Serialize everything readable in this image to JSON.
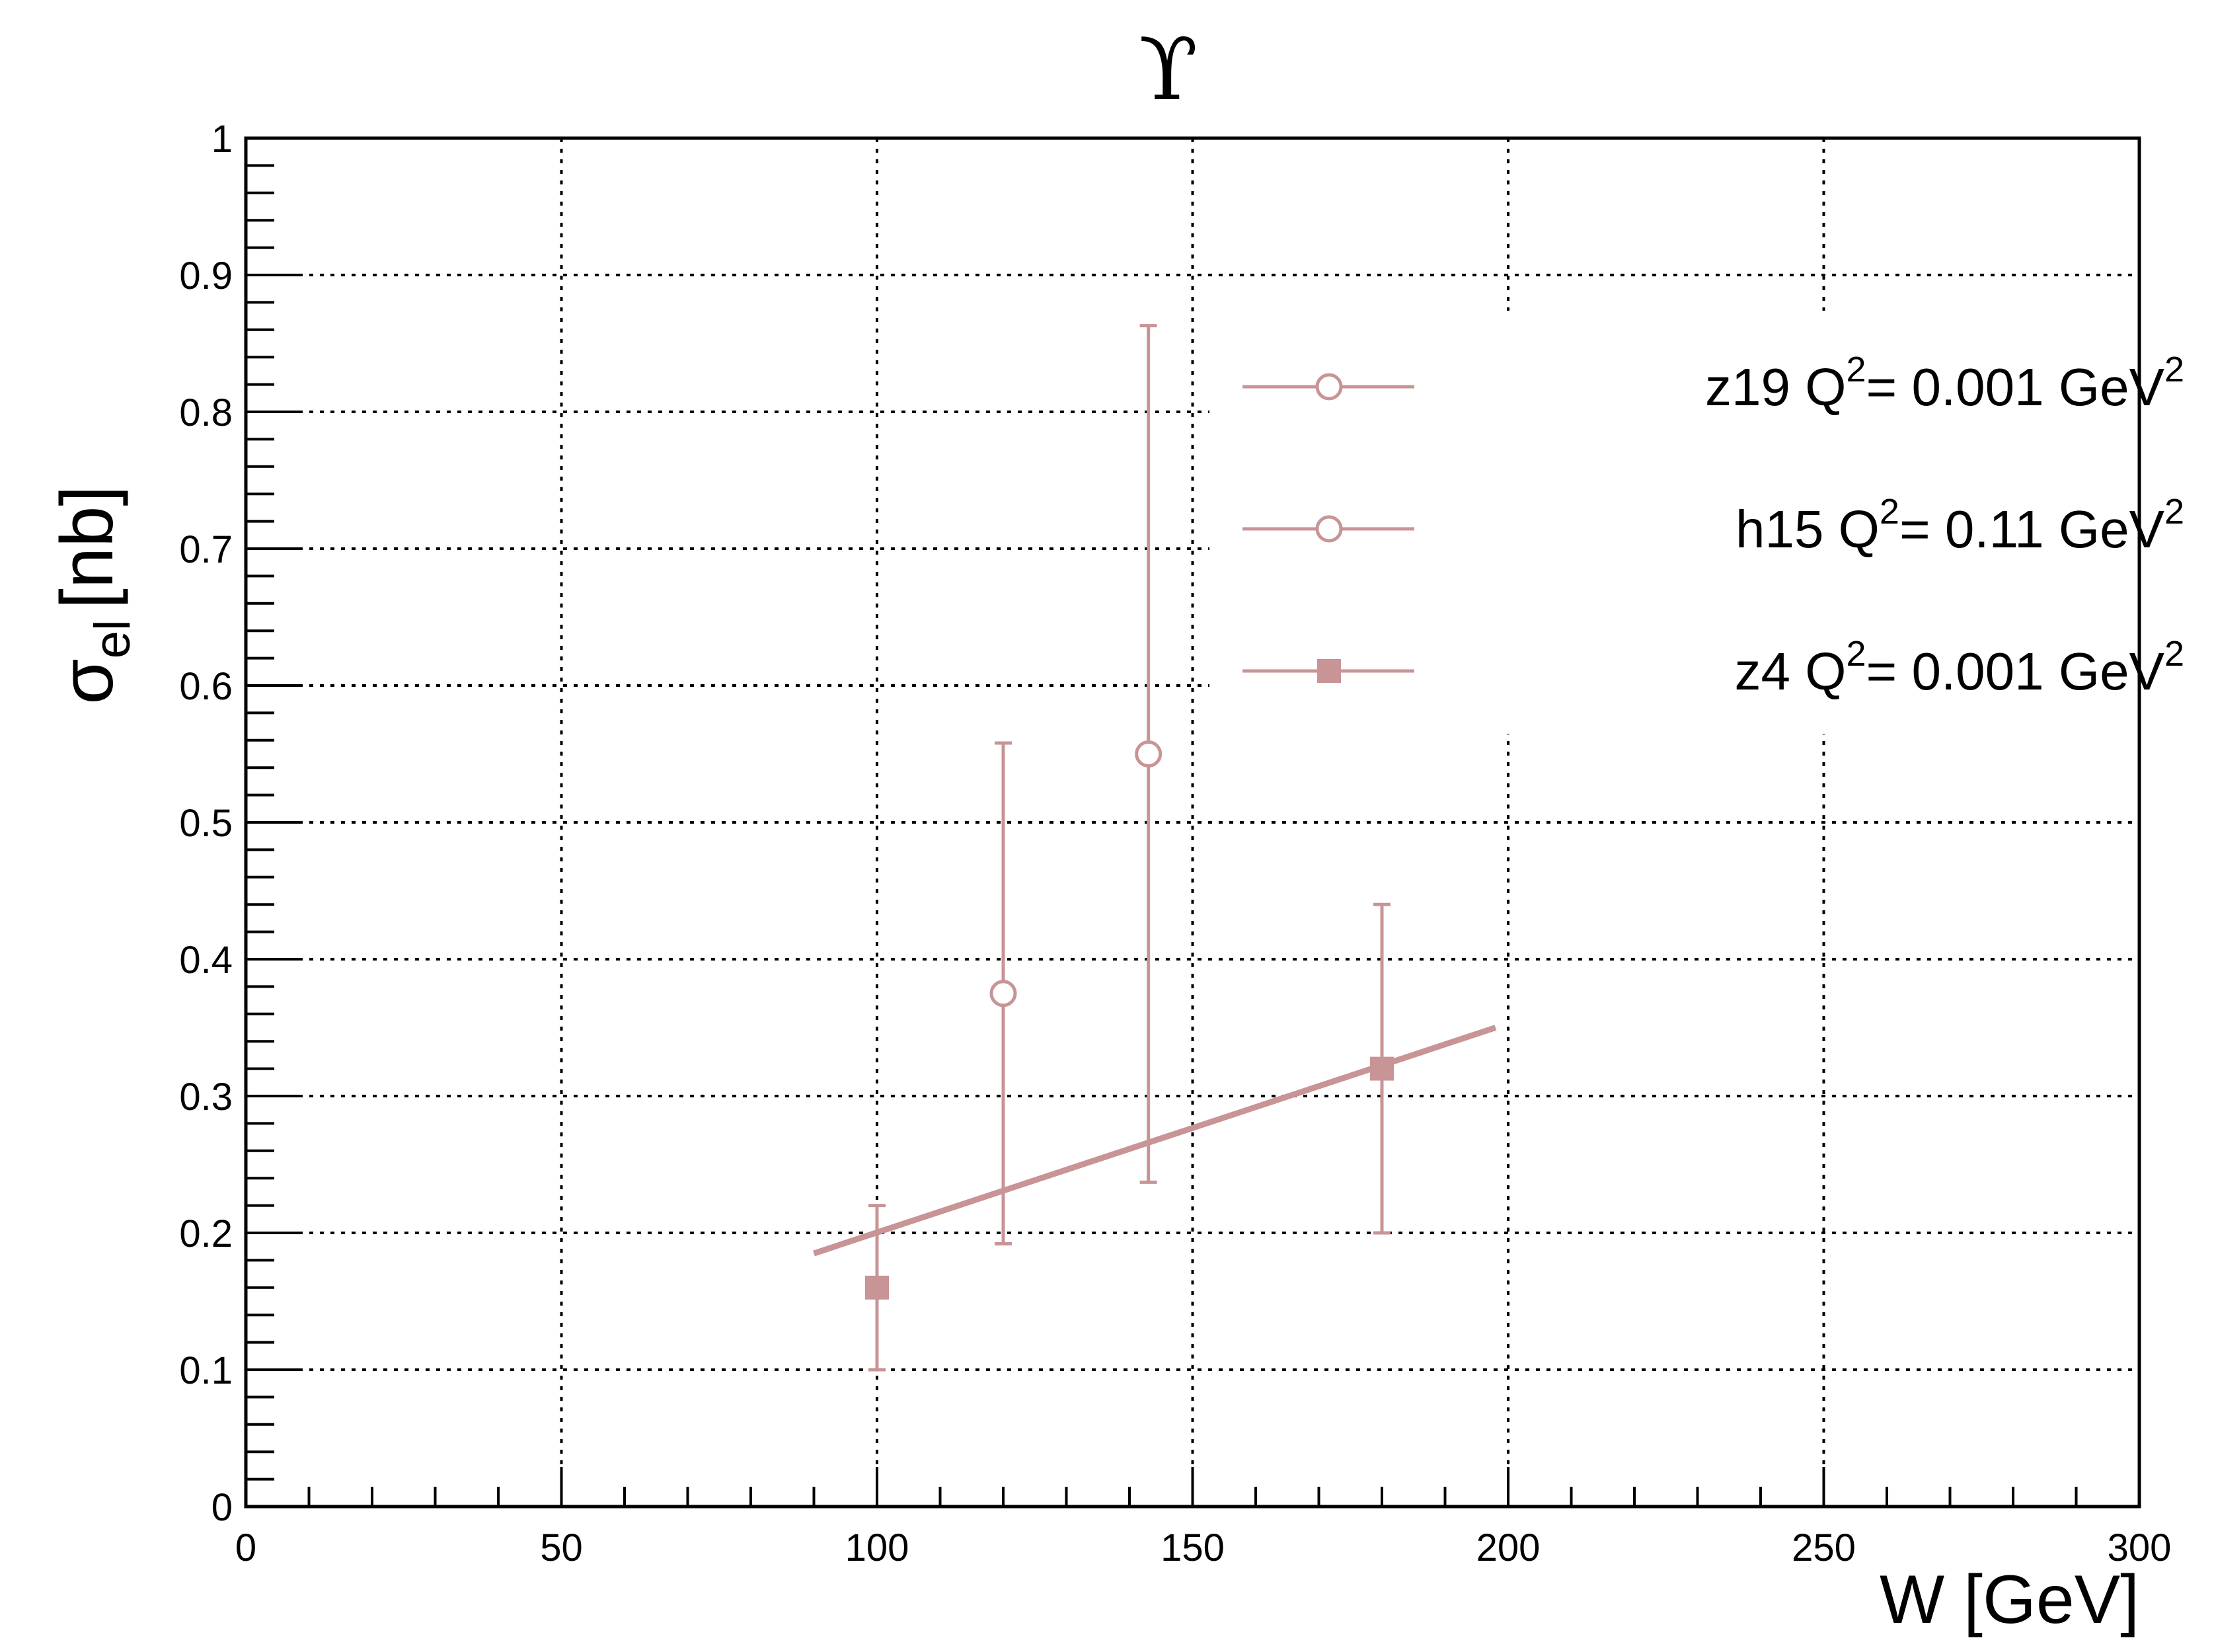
{
  "chart_data": {
    "type": "scatter",
    "title": "ϒ",
    "xlabel": "W [GeV]",
    "ylabel_main": "σ",
    "ylabel_sub": "el",
    "ylabel_unit": "[nb]",
    "xlim": [
      0,
      300
    ],
    "ylim": [
      0,
      1
    ],
    "x_ticks": [
      0,
      50,
      100,
      150,
      200,
      250,
      300
    ],
    "y_ticks": [
      0,
      0.1,
      0.2,
      0.3,
      0.4,
      0.5,
      0.6,
      0.7,
      0.8,
      0.9,
      1
    ],
    "x_tick_labels": [
      "0",
      "50",
      "100",
      "150",
      "200",
      "250",
      "300"
    ],
    "y_tick_labels": [
      "0",
      "0.1",
      "0.2",
      "0.3",
      "0.4",
      "0.5",
      "0.6",
      "0.7",
      "0.8",
      "0.9",
      "1"
    ],
    "grid": true,
    "legend_position": "top-right",
    "color": "#c89496",
    "series": [
      {
        "legend_prefix": "z19 Q",
        "legend_mid": "= 0.001 GeV",
        "marker": "open-circle",
        "points": []
      },
      {
        "legend_prefix": "h15 Q",
        "legend_mid": "=  0.11 GeV",
        "marker": "open-circle",
        "points": [
          {
            "x": 120,
            "y": 0.375,
            "ylo": 0.192,
            "yhi": 0.558
          },
          {
            "x": 143,
            "y": 0.55,
            "ylo": 0.237,
            "yhi": 0.863
          }
        ]
      },
      {
        "legend_prefix": "z4 Q",
        "legend_mid": "= 0.001 GeV",
        "marker": "filled-square",
        "points": [
          {
            "x": 100,
            "y": 0.16,
            "ylo": 0.1,
            "yhi": 0.22
          },
          {
            "x": 180,
            "y": 0.32,
            "ylo": 0.2,
            "yhi": 0.44
          }
        ]
      }
    ],
    "fit_line": {
      "x": [
        90,
        198
      ],
      "y": [
        0.185,
        0.35
      ]
    }
  }
}
